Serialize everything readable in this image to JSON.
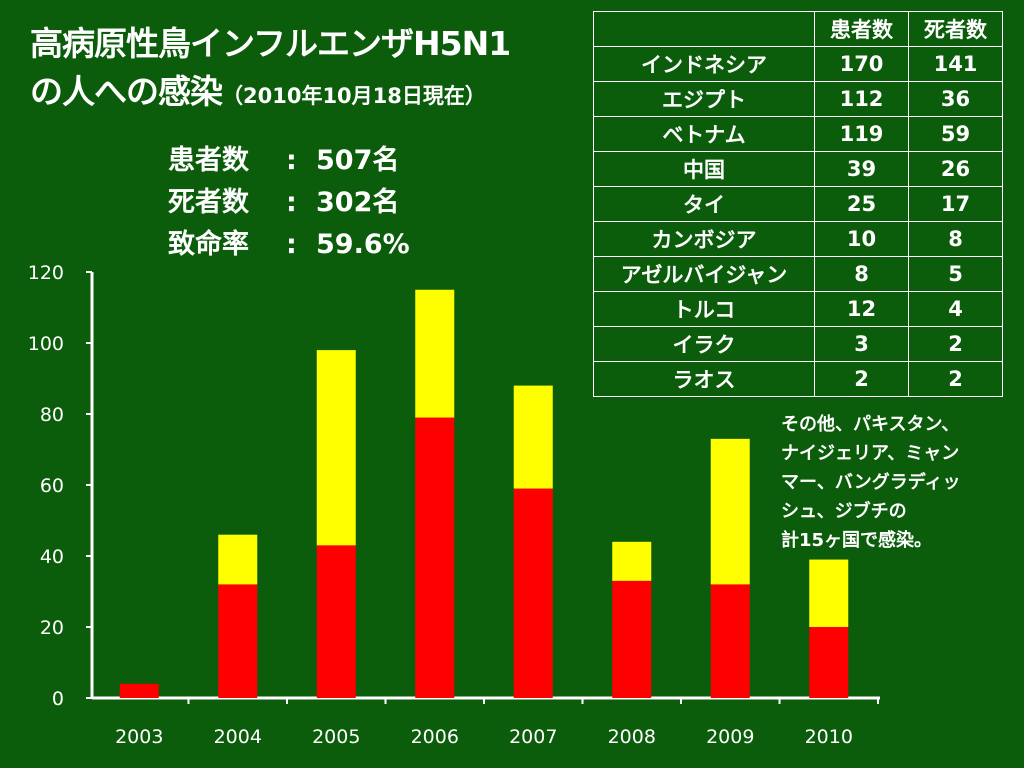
{
  "title": {
    "line1": "高病原性鳥インフルエンザH5N1",
    "line2": "の人への感染",
    "date": "（2010年10月18日現在）"
  },
  "stats": [
    {
      "label": "患者数",
      "colon": ":",
      "value": "507名"
    },
    {
      "label": "死者数",
      "colon": ":",
      "value": "302名"
    },
    {
      "label": "致命率",
      "colon": ":",
      "value": "59.6%"
    }
  ],
  "table": {
    "headers": [
      "",
      "患者数",
      "死者数"
    ],
    "rows": [
      [
        "インドネシア",
        "170",
        "141"
      ],
      [
        "エジプト",
        "112",
        "36"
      ],
      [
        "ベトナム",
        "119",
        "59"
      ],
      [
        "中国",
        "39",
        "26"
      ],
      [
        "タイ",
        "25",
        "17"
      ],
      [
        "カンボジア",
        "10",
        "8"
      ],
      [
        "アゼルバイジャン",
        "8",
        "5"
      ],
      [
        "トルコ",
        "12",
        "4"
      ],
      [
        "イラク",
        "3",
        "2"
      ],
      [
        "ラオス",
        "2",
        "2"
      ]
    ]
  },
  "note": {
    "lines": [
      "その他、パキスタン、",
      "ナイジェリア、ミャン",
      "マー、バングラディッ",
      "シュ、ジブチの",
      "計15ヶ国で感染。"
    ]
  },
  "colors": {
    "background": "#0b5c0b",
    "deaths": "#ff0000",
    "survivors": "#ffff00",
    "text": "#ffffff"
  },
  "chart_data": {
    "type": "bar",
    "stacked": true,
    "categories": [
      "2003",
      "2004",
      "2005",
      "2006",
      "2007",
      "2008",
      "2009",
      "2010"
    ],
    "series": [
      {
        "color": "#ff0000",
        "values": [
          4,
          32,
          43,
          79,
          59,
          33,
          32,
          20
        ]
      },
      {
        "color": "#ffff00",
        "values": [
          0,
          14,
          55,
          36,
          29,
          11,
          41,
          19
        ]
      }
    ],
    "totals": [
      4,
      46,
      98,
      115,
      88,
      44,
      73,
      39
    ],
    "ylim": [
      0,
      120
    ],
    "yticks": [
      0,
      20,
      40,
      60,
      80,
      100,
      120
    ],
    "grid": false,
    "title": "",
    "xlabel": "",
    "ylabel": ""
  }
}
